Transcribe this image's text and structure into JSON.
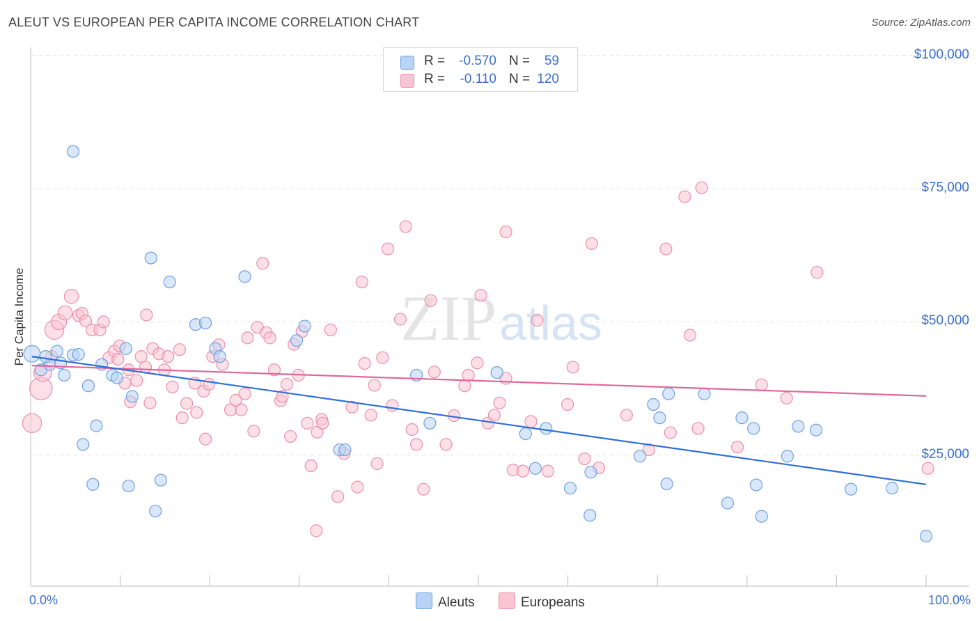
{
  "title": "ALEUT VS EUROPEAN PER CAPITA INCOME CORRELATION CHART",
  "source": "Source: ZipAtlas.com",
  "watermark": "ZIPatlas",
  "legend_top": {
    "rows": [
      {
        "r_label": "R =",
        "r_value": "-0.570",
        "n_label": "N =",
        "n_value": "59"
      },
      {
        "r_label": "R =",
        "r_value": "-0.110",
        "n_label": "N =",
        "n_value": "120"
      }
    ]
  },
  "legend_bottom": {
    "aleuts": "Aleuts",
    "europeans": "Europeans"
  },
  "colors": {
    "aleuts_fill": "#b8d3f5",
    "aleuts_stroke": "#6f9fe0",
    "aleuts_line": "#2f6fd6",
    "europeans_fill": "#f9c4d4",
    "europeans_stroke": "#eb8fac",
    "europeans_line": "#e0679a",
    "tick_text": "#3a6fcf"
  },
  "chart_data": {
    "type": "scatter",
    "title": "ALEUT VS EUROPEAN PER CAPITA INCOME CORRELATION CHART",
    "xlabel": "",
    "ylabel": "Per Capita Income",
    "xlim": [
      0,
      100
    ],
    "ylim": [
      0,
      105000
    ],
    "x_tick_labels": [
      "0.0%",
      "100.0%"
    ],
    "y_ticks": [
      25000,
      50000,
      75000,
      100000
    ],
    "y_tick_labels": [
      "$25,000",
      "$50,000",
      "$75,000",
      "$100,000"
    ],
    "grid": true,
    "legend_position": "top-center",
    "series": [
      {
        "name": "Aleuts",
        "R": -0.57,
        "N": 59,
        "trend": {
          "x0": 0,
          "y0": 43500,
          "x1": 100,
          "y1": 19500
        },
        "points": [
          [
            0,
            44000,
            1.4
          ],
          [
            1,
            41000,
            1
          ],
          [
            2,
            42000,
            1
          ],
          [
            1.5,
            43500,
            1
          ],
          [
            2.8,
            44500,
            1
          ],
          [
            3.6,
            40000,
            1
          ],
          [
            4.6,
            43800,
            1
          ],
          [
            4.6,
            82000,
            1
          ],
          [
            6.3,
            38000,
            1
          ],
          [
            5.7,
            27000,
            1
          ],
          [
            7.2,
            30500,
            1
          ],
          [
            6.8,
            19500,
            1
          ],
          [
            7.8,
            42000,
            1
          ],
          [
            9,
            40000,
            1
          ],
          [
            9.5,
            39500,
            1
          ],
          [
            10.5,
            45000,
            1
          ],
          [
            10.8,
            19200,
            1
          ],
          [
            11.2,
            36000,
            1
          ],
          [
            13.3,
            62000,
            1
          ],
          [
            13.8,
            14500,
            1
          ],
          [
            14.4,
            20300,
            1
          ],
          [
            15.4,
            57500,
            1
          ],
          [
            18.3,
            49500,
            1
          ],
          [
            19.4,
            49800,
            1
          ],
          [
            20.5,
            45000,
            1
          ],
          [
            21,
            43500,
            1
          ],
          [
            23.8,
            58500,
            1
          ],
          [
            29.6,
            46500,
            1
          ],
          [
            30.5,
            49200,
            1
          ],
          [
            34.4,
            26000,
            1
          ],
          [
            35,
            26000,
            1
          ],
          [
            43,
            40000,
            1
          ],
          [
            44.5,
            31000,
            1
          ],
          [
            52,
            40500,
            1
          ],
          [
            55.2,
            29000,
            1
          ],
          [
            56.3,
            22500,
            1
          ],
          [
            57.5,
            30000,
            1
          ],
          [
            60.2,
            18800,
            1
          ],
          [
            62.4,
            13700,
            1
          ],
          [
            62.5,
            21800,
            1
          ],
          [
            68,
            24800,
            1
          ],
          [
            69.5,
            34500,
            1
          ],
          [
            70.2,
            32000,
            1
          ],
          [
            71,
            19600,
            1
          ],
          [
            71.2,
            36500,
            1
          ],
          [
            75.2,
            36500,
            1
          ],
          [
            77.8,
            16000,
            1
          ],
          [
            79.4,
            32000,
            1
          ],
          [
            80.7,
            30000,
            1
          ],
          [
            81,
            19400,
            1
          ],
          [
            81.6,
            13500,
            1
          ],
          [
            84.5,
            24800,
            1
          ],
          [
            85.7,
            30400,
            1
          ],
          [
            87.7,
            29700,
            1
          ],
          [
            91.6,
            18600,
            1
          ],
          [
            96.2,
            18800,
            1
          ],
          [
            100,
            9800,
            1
          ],
          [
            5.2,
            43900,
            1
          ],
          [
            3.2,
            42300,
            1
          ]
        ]
      },
      {
        "name": "Europeans",
        "R": -0.11,
        "N": 120,
        "trend": {
          "x0": 0,
          "y0": 41800,
          "x1": 100,
          "y1": 36100
        },
        "points": [
          [
            0,
            31000,
            1.6
          ],
          [
            1,
            37500,
            1.9
          ],
          [
            1.2,
            40500,
            1.5
          ],
          [
            2.5,
            48500,
            1.6
          ],
          [
            3,
            50000,
            1.3
          ],
          [
            3.7,
            51700,
            1.2
          ],
          [
            4.4,
            54800,
            1.2
          ],
          [
            2.2,
            43500,
            1
          ],
          [
            5.2,
            51200,
            1
          ],
          [
            5.6,
            51600,
            1
          ],
          [
            6,
            50200,
            1
          ],
          [
            6.7,
            48500,
            1
          ],
          [
            7.6,
            48500,
            1
          ],
          [
            8,
            50000,
            1
          ],
          [
            8.6,
            43300,
            1
          ],
          [
            9.2,
            44500,
            1
          ],
          [
            9.6,
            43000,
            1
          ],
          [
            9.8,
            45500,
            1
          ],
          [
            10.4,
            38500,
            1
          ],
          [
            10.8,
            41000,
            1
          ],
          [
            11,
            35000,
            1
          ],
          [
            11.7,
            39000,
            1
          ],
          [
            12.2,
            43500,
            1
          ],
          [
            12.7,
            41500,
            1
          ],
          [
            12.8,
            51300,
            1
          ],
          [
            13.2,
            34800,
            1
          ],
          [
            13.5,
            45000,
            1
          ],
          [
            14.2,
            44000,
            1
          ],
          [
            14.8,
            41000,
            1
          ],
          [
            15.2,
            43500,
            1
          ],
          [
            15.7,
            37800,
            1
          ],
          [
            16.5,
            44800,
            1
          ],
          [
            16.8,
            32000,
            1
          ],
          [
            17.3,
            34700,
            1
          ],
          [
            18.2,
            38500,
            1
          ],
          [
            18.4,
            33000,
            1
          ],
          [
            19.2,
            37000,
            1
          ],
          [
            19.4,
            28000,
            1
          ],
          [
            19.8,
            38300,
            1
          ],
          [
            20.2,
            43500,
            1
          ],
          [
            20.9,
            45700,
            1
          ],
          [
            21.3,
            42000,
            1
          ],
          [
            22.2,
            33500,
            1
          ],
          [
            22.8,
            35300,
            1
          ],
          [
            23.4,
            33500,
            1
          ],
          [
            23.8,
            36500,
            1
          ],
          [
            24.1,
            47000,
            1
          ],
          [
            24.8,
            29500,
            1
          ],
          [
            25.2,
            49000,
            1
          ],
          [
            25.8,
            61000,
            1
          ],
          [
            26.2,
            48000,
            1
          ],
          [
            26.6,
            47000,
            1
          ],
          [
            27.1,
            41000,
            1
          ],
          [
            27.8,
            35200,
            1
          ],
          [
            28,
            36000,
            1
          ],
          [
            28.5,
            38300,
            1
          ],
          [
            28.9,
            28500,
            1
          ],
          [
            29.3,
            45800,
            1
          ],
          [
            29.8,
            40000,
            1
          ],
          [
            30.2,
            48200,
            1
          ],
          [
            30.8,
            31000,
            1
          ],
          [
            31.2,
            23000,
            1
          ],
          [
            31.8,
            10800,
            1
          ],
          [
            31.9,
            29300,
            1
          ],
          [
            32.4,
            31700,
            1
          ],
          [
            33.4,
            48500,
            1
          ],
          [
            34.2,
            17200,
            1
          ],
          [
            34.9,
            25300,
            1
          ],
          [
            35.8,
            34000,
            1
          ],
          [
            36.4,
            19000,
            1
          ],
          [
            36.9,
            57500,
            1
          ],
          [
            37.2,
            42200,
            1
          ],
          [
            37.9,
            32500,
            1
          ],
          [
            38.3,
            38100,
            1
          ],
          [
            38.6,
            23400,
            1
          ],
          [
            39.2,
            43300,
            1
          ],
          [
            39.8,
            63700,
            1
          ],
          [
            40.3,
            34300,
            1
          ],
          [
            41.2,
            50500,
            1
          ],
          [
            41.8,
            67900,
            1
          ],
          [
            42.5,
            29800,
            1
          ],
          [
            43,
            27000,
            1
          ],
          [
            43.8,
            18600,
            1
          ],
          [
            44.6,
            54000,
            1
          ],
          [
            45,
            40600,
            1
          ],
          [
            46.3,
            27000,
            1
          ],
          [
            47.2,
            32400,
            1
          ],
          [
            48.4,
            38000,
            1
          ],
          [
            48.8,
            40000,
            1
          ],
          [
            49.8,
            42300,
            1
          ],
          [
            50.2,
            55000,
            1
          ],
          [
            51,
            31000,
            1
          ],
          [
            51.7,
            32500,
            1
          ],
          [
            52.3,
            34800,
            1
          ],
          [
            53,
            39400,
            1
          ],
          [
            53,
            66900,
            1
          ],
          [
            53.8,
            22200,
            1
          ],
          [
            54.9,
            22000,
            1
          ],
          [
            55.8,
            31300,
            1
          ],
          [
            56.5,
            50300,
            1
          ],
          [
            57.7,
            22000,
            1
          ],
          [
            59.9,
            34500,
            1
          ],
          [
            60.5,
            41500,
            1
          ],
          [
            61.8,
            24300,
            1
          ],
          [
            62.6,
            64700,
            1
          ],
          [
            63.4,
            22600,
            1
          ],
          [
            66.5,
            32500,
            1
          ],
          [
            69,
            26000,
            1
          ],
          [
            70.9,
            63700,
            1
          ],
          [
            71.4,
            29200,
            1
          ],
          [
            73,
            73500,
            1
          ],
          [
            73.6,
            47500,
            1
          ],
          [
            74.5,
            30000,
            1
          ],
          [
            74.9,
            75200,
            1
          ],
          [
            78.9,
            26500,
            1
          ],
          [
            81.6,
            38200,
            1
          ],
          [
            84.4,
            35700,
            1
          ],
          [
            87.8,
            59300,
            1
          ],
          [
            100.2,
            22500,
            1
          ],
          [
            32.5,
            31000,
            1
          ]
        ]
      }
    ]
  }
}
